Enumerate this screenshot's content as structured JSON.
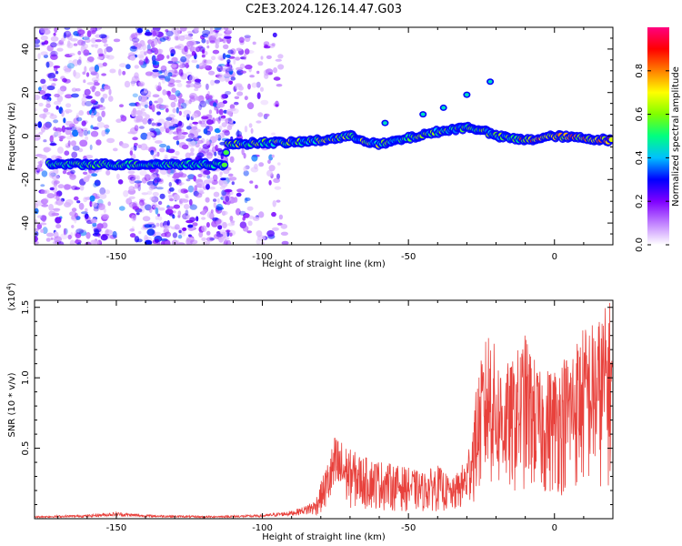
{
  "title": "C2E3.2024.126.14.47.G03",
  "chart_data": [
    {
      "type": "heatmap",
      "xlabel": "Height of straight line (km)",
      "ylabel": "Frequency (Hz)",
      "xlim": [
        -178,
        20
      ],
      "ylim": [
        -50,
        50
      ],
      "xticks": [
        -150,
        -100,
        -50,
        0
      ],
      "xtick_labels": [
        "-150",
        "-100",
        "-50",
        "0"
      ],
      "yticks": [
        -40,
        -20,
        0,
        20,
        40
      ],
      "ytick_labels": [
        "-40",
        "-20",
        "0",
        "20",
        "40"
      ],
      "colorbar": {
        "label": "Normalized spectral amplitude",
        "range": [
          0,
          1
        ],
        "ticks": [
          0.0,
          0.2,
          0.4,
          0.6,
          0.8
        ],
        "tick_labels": [
          "0.0",
          "0.2",
          "0.4",
          "0.6",
          "0.8"
        ],
        "colormap": [
          "#ffffff",
          "#c080ff",
          "#7f00ff",
          "#0000ff",
          "#00c0ff",
          "#00ff80",
          "#80ff00",
          "#ffff00",
          "#ff8000",
          "#ff0000",
          "#ff0080"
        ]
      },
      "ridge": {
        "x": [
          -173,
          -160,
          -150,
          -140,
          -130,
          -120,
          -113,
          -112,
          -100,
          -90,
          -80,
          -70,
          -60,
          -50,
          -40,
          -30,
          -25,
          -20,
          -15,
          -10,
          0,
          10,
          20
        ],
        "y": [
          -13,
          -13,
          -13,
          -13,
          -13,
          -13,
          -13,
          -4,
          -3,
          -3,
          -2,
          0,
          -4,
          -1,
          2,
          4,
          3,
          0,
          -1,
          -2,
          0,
          -1,
          -2
        ]
      },
      "features": [
        {
          "x": -58,
          "y": 6
        },
        {
          "x": -45,
          "y": 10
        },
        {
          "x": -38,
          "y": 13
        },
        {
          "x": -30,
          "y": 19
        },
        {
          "x": -22,
          "y": 25
        }
      ],
      "grid": false
    },
    {
      "type": "line",
      "xlabel": "Height of straight line (km)",
      "ylabel": "SNR (10 * v/v)",
      "multiplier": "(x10",
      "multiplier_exp": "4",
      "xlim": [
        -178,
        20
      ],
      "ylim": [
        0,
        1.55
      ],
      "xticks": [
        -150,
        -100,
        -50,
        0
      ],
      "xtick_labels": [
        "-150",
        "-100",
        "-50",
        "0"
      ],
      "yticks": [
        0.5,
        1.0,
        1.5
      ],
      "ytick_labels": [
        "0.5",
        "1.0",
        "1.5"
      ],
      "series_color": "#e8413c",
      "envelope": {
        "x": [
          -178,
          -160,
          -150,
          -140,
          -120,
          -100,
          -90,
          -82,
          -78,
          -75,
          -70,
          -65,
          -60,
          -55,
          -50,
          -45,
          -40,
          -35,
          -30,
          -26,
          -22,
          -20,
          -15,
          -10,
          -5,
          0,
          5,
          10,
          15,
          20
        ],
        "y": [
          0.02,
          0.03,
          0.05,
          0.03,
          0.02,
          0.03,
          0.06,
          0.12,
          0.35,
          0.55,
          0.45,
          0.4,
          0.38,
          0.35,
          0.33,
          0.3,
          0.35,
          0.25,
          0.4,
          0.95,
          1.3,
          1.05,
          1.0,
          1.2,
          0.95,
          1.0,
          1.1,
          1.25,
          1.3,
          1.45
        ]
      },
      "grid": false
    }
  ]
}
